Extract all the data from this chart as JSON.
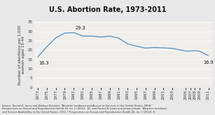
{
  "title": "U.S. Abortion Rate, 1973-2011",
  "ylabel": "Number of abortions per 1,000\nwomen aged 15-44",
  "years": [
    1973,
    1975,
    1977,
    1979,
    1981,
    1983,
    1985,
    1987,
    1989,
    1991,
    1993,
    1995,
    1997,
    1999,
    2001,
    2003,
    2006,
    2007,
    2008,
    2009,
    2011
  ],
  "values": [
    16.3,
    21.7,
    26.4,
    29.0,
    29.3,
    27.4,
    27.4,
    26.9,
    27.4,
    26.3,
    23.3,
    22.0,
    21.0,
    21.3,
    21.1,
    20.8,
    19.4,
    19.5,
    19.6,
    19.4,
    16.9
  ],
  "line_color": "#4d8fc4",
  "title_bg_color": "#6aadd5",
  "plot_bg_color": "#f0eeea",
  "fig_bg_color": "#e8e8e8",
  "annotation_start": "16.3",
  "annotation_peak": "29.3",
  "annotation_end": "16.9",
  "ylim": [
    0,
    35
  ],
  "yticks": [
    0,
    5,
    10,
    15,
    20,
    25,
    30,
    35
  ],
  "xtick_years": [
    1973,
    1975,
    1977,
    1979,
    1981,
    1983,
    1985,
    1987,
    1989,
    1991,
    1993,
    1995,
    1997,
    1999,
    2001,
    2003,
    2006,
    2007,
    2008,
    2009,
    2011
  ],
  "title_fontsize": 7.0,
  "label_fontsize": 4.0,
  "tick_fontsize": 4.0,
  "annotation_fontsize": 4.8,
  "source_fontsize": 2.6,
  "source_text": "Source: Rachel K. Jones and Kathryn Kooistra, \"Abortion Incidence and Access to Services in the United States, 2008,\"\nPerspectives on Sexual and Reproductive Health 43, no. 1 (2011):  41; and Rachel K. Jones and Jenna Jerman, \"Abortion Incidence\nand Service Availability in the United States, 2011,\" Perspectives on Sexual and Reproductive Health 46, no. 1 (2014): 6."
}
